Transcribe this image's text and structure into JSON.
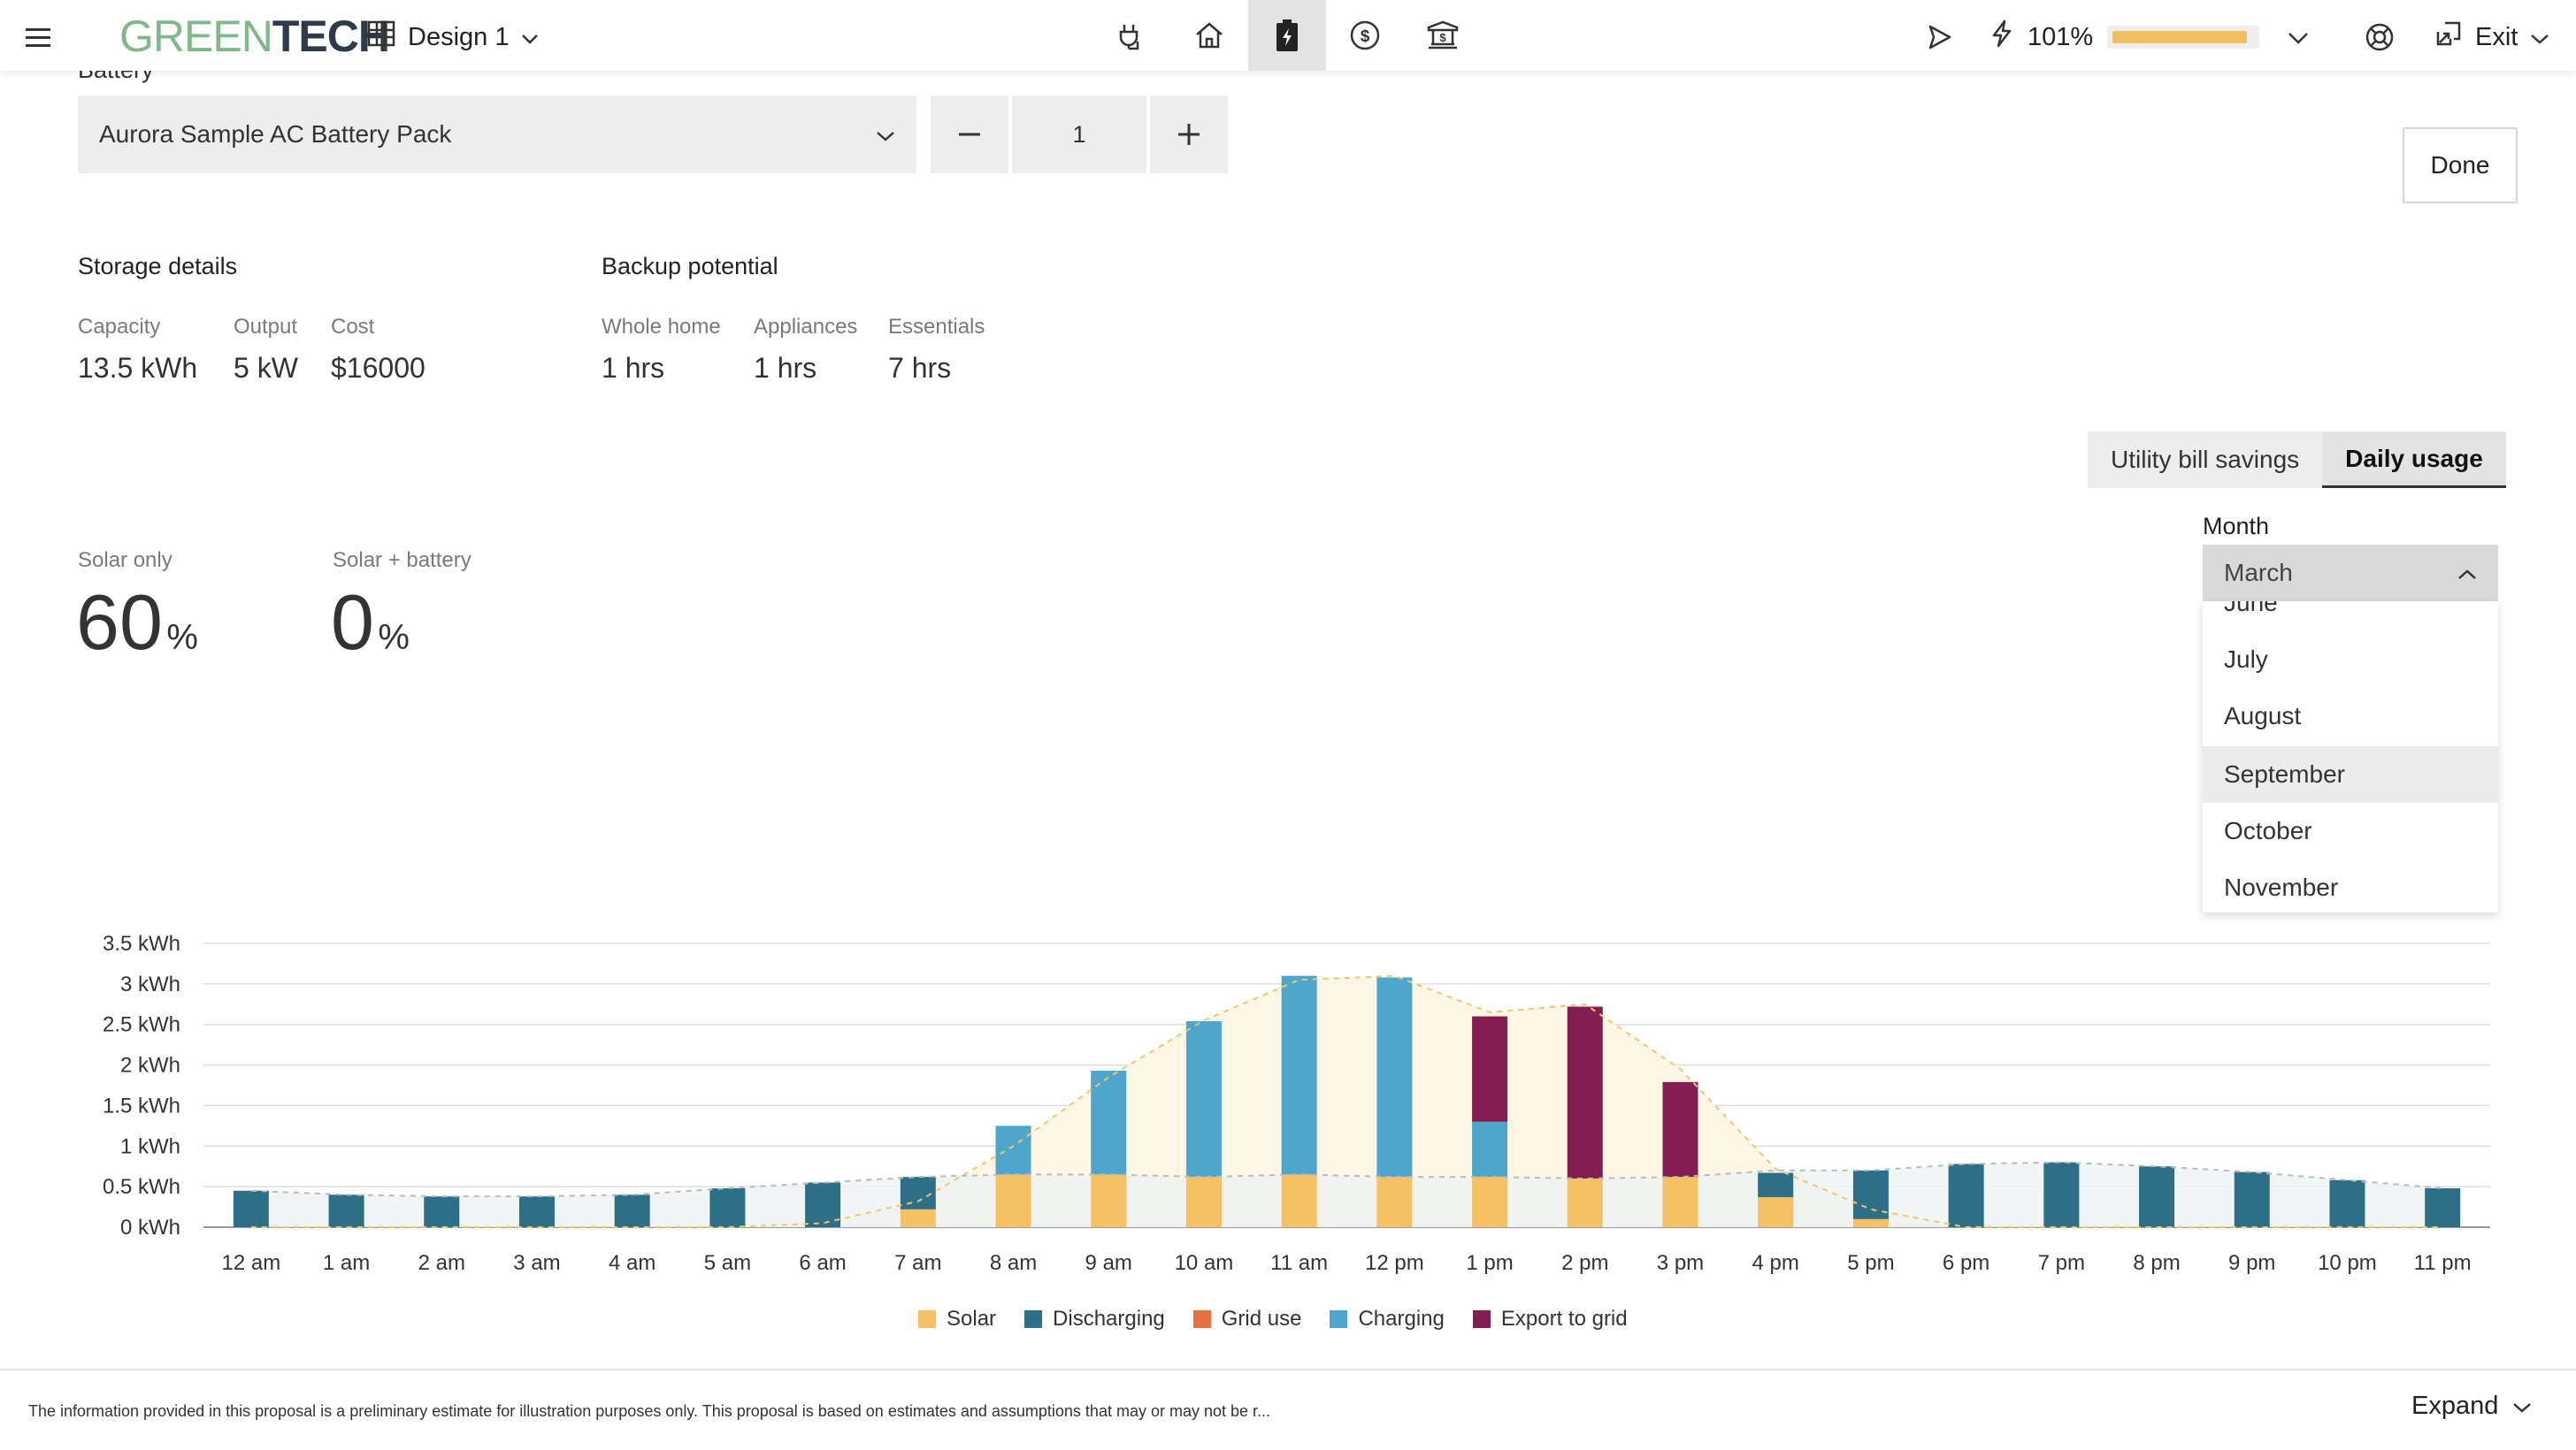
{
  "header": {
    "logo_green": "GREEN",
    "logo_dark": "TECH",
    "design_label": "Design 1",
    "performance_label": "101%",
    "performance_fraction": 0.95,
    "exit_label": "Exit",
    "nav_icons": [
      "plug-icon",
      "home-icon",
      "battery-icon",
      "dollar-icon",
      "bank-icon"
    ],
    "active_nav": "battery-icon"
  },
  "battery": {
    "label": "Battery",
    "selected": "Aurora Sample AC Battery Pack",
    "quantity": "1",
    "done_label": "Done"
  },
  "storage": {
    "title": "Storage details",
    "capacity_label": "Capacity",
    "capacity_value": "13.5 kWh",
    "output_label": "Output",
    "output_value": "5 kW",
    "cost_label": "Cost",
    "cost_value": "$16000"
  },
  "backup": {
    "title": "Backup potential",
    "whole_label": "Whole home",
    "whole_value": "1 hrs",
    "appl_label": "Appliances",
    "appl_value": "1 hrs",
    "ess_label": "Essentials",
    "ess_value": "7 hrs"
  },
  "tabs": {
    "savings": "Utility bill savings",
    "daily": "Daily usage",
    "active": "daily"
  },
  "month": {
    "label": "Month",
    "selected": "March",
    "options": [
      "June",
      "July",
      "August",
      "September",
      "October",
      "November"
    ],
    "highlighted": "September"
  },
  "offset": {
    "solar_label": "Solar only",
    "solar_value": "60",
    "solar_unit": "%",
    "batt_label": "Solar + battery",
    "batt_value": "0",
    "batt_unit": "%"
  },
  "chart_data": {
    "type": "bar",
    "categories": [
      "12 am",
      "1 am",
      "2 am",
      "3 am",
      "4 am",
      "5 am",
      "6 am",
      "7 am",
      "8 am",
      "9 am",
      "10 am",
      "11 am",
      "12 pm",
      "1 pm",
      "2 pm",
      "3 pm",
      "4 pm",
      "5 pm",
      "6 pm",
      "7 pm",
      "8 pm",
      "9 pm",
      "10 pm",
      "11 pm"
    ],
    "y_ticks": [
      "0 kWh",
      "0.5 kWh",
      "1 kWh",
      "1.5 kWh",
      "2 kWh",
      "2.5 kWh",
      "3 kWh",
      "3.5 kWh"
    ],
    "ylim": [
      0,
      3.5
    ],
    "stacked": true,
    "series": [
      {
        "name": "Solar",
        "color": "#f5c163",
        "values": [
          0,
          0,
          0,
          0,
          0,
          0,
          0,
          0.22,
          0.65,
          0.65,
          0.62,
          0.65,
          0.62,
          0.62,
          0.6,
          0.62,
          0.37,
          0.1,
          0,
          0,
          0,
          0,
          0,
          0
        ]
      },
      {
        "name": "Discharging",
        "color": "#2e6f88",
        "values": [
          0.45,
          0.4,
          0.38,
          0.38,
          0.4,
          0.48,
          0.55,
          0.4,
          0,
          0,
          0,
          0,
          0,
          0,
          0,
          0,
          0.3,
          0.6,
          0.78,
          0.8,
          0.75,
          0.68,
          0.58,
          0.48
        ]
      },
      {
        "name": "Grid use",
        "color": "#e8703c",
        "values": [
          0,
          0,
          0,
          0,
          0,
          0,
          0,
          0,
          0,
          0,
          0,
          0,
          0,
          0,
          0,
          0,
          0,
          0,
          0,
          0,
          0,
          0,
          0,
          0
        ]
      },
      {
        "name": "Charging",
        "color": "#4fa6cc",
        "values": [
          0,
          0,
          0,
          0,
          0,
          0,
          0,
          0,
          0.6,
          1.28,
          1.92,
          2.45,
          2.46,
          0.68,
          0,
          0,
          0,
          0,
          0,
          0,
          0,
          0,
          0,
          0
        ]
      },
      {
        "name": "Export to grid",
        "color": "#861d52",
        "values": [
          0,
          0,
          0,
          0,
          0,
          0,
          0,
          0,
          0,
          0,
          0,
          0,
          0,
          1.3,
          2.12,
          1.17,
          0,
          0,
          0,
          0,
          0,
          0,
          0,
          0
        ]
      }
    ],
    "solar_production_line": [
      0,
      0,
      0,
      0,
      0,
      0,
      0.05,
      0.32,
      1.0,
      1.85,
      2.55,
      3.05,
      3.1,
      2.65,
      2.75,
      1.95,
      0.72,
      0.22,
      0,
      0,
      0,
      0,
      0,
      0
    ],
    "consumption_line": [
      0.45,
      0.4,
      0.38,
      0.38,
      0.4,
      0.48,
      0.55,
      0.62,
      0.65,
      0.65,
      0.62,
      0.65,
      0.62,
      0.62,
      0.6,
      0.62,
      0.7,
      0.7,
      0.78,
      0.8,
      0.75,
      0.68,
      0.58,
      0.48
    ],
    "legend_placement": "bottom-center",
    "grid": true
  },
  "footer": {
    "disclaimer": "The information provided in this proposal is a preliminary estimate for illustration purposes only. This proposal is based on estimates and assumptions that may or may not be r...",
    "expand_label": "Expand"
  }
}
